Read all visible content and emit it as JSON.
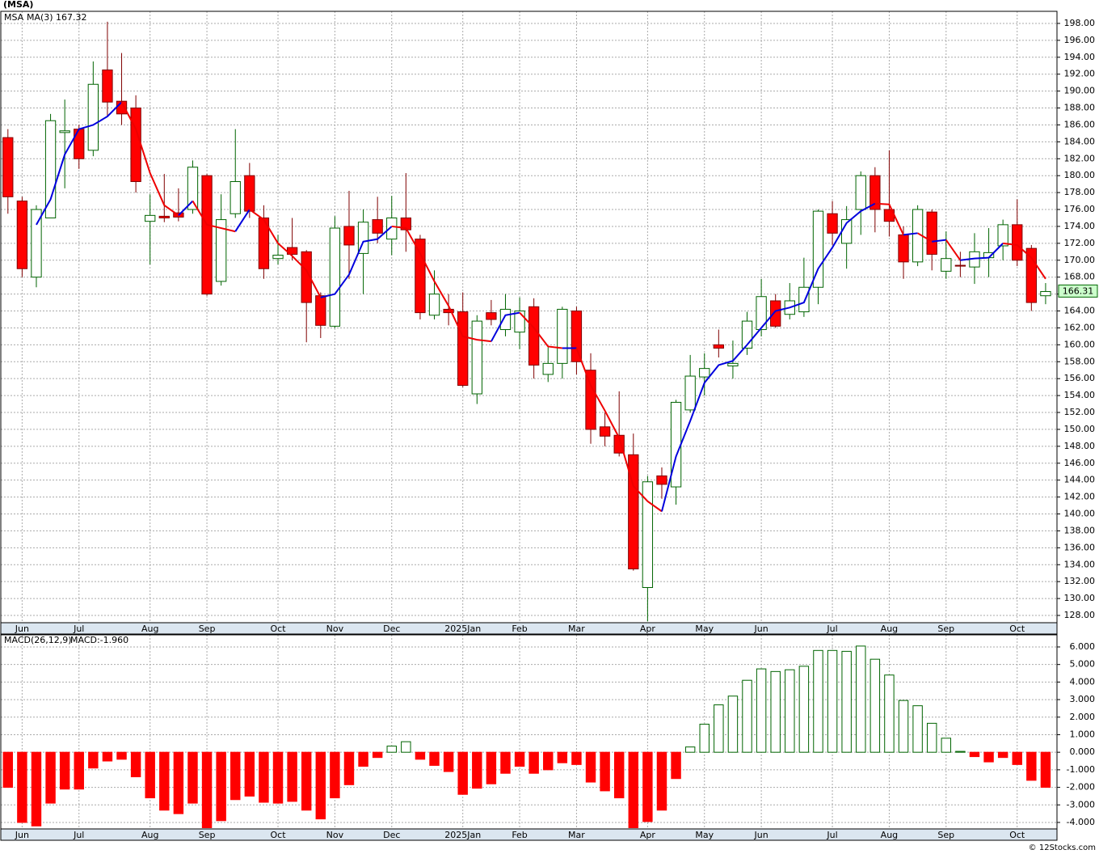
{
  "chart_data": [
    {
      "type": "candlestick",
      "title": "(MSA)",
      "symbol": "MSA",
      "up_color": "#006400",
      "down_color": "#ff0000",
      "open": [
        184.5,
        177,
        168,
        175,
        185.1,
        185.5,
        183,
        192.5,
        188.8,
        188,
        174.6,
        175.2,
        175.6,
        176,
        180,
        167.5,
        175.5,
        180,
        175,
        170.2,
        171.5,
        171,
        165.8,
        162.2,
        174,
        170.8,
        174.8,
        172.5,
        175,
        172.5,
        163.5,
        164.2,
        163.9,
        154.2,
        163.8,
        161.8,
        161.5,
        164.5,
        156.5,
        157.8,
        164,
        157,
        150.3,
        149.3,
        147,
        131.3,
        144.5,
        143.2,
        152.3,
        156.2,
        160,
        157.5,
        159.6,
        161.8,
        165.2,
        163.6,
        163.9,
        166.8,
        175.5,
        172,
        176,
        180,
        176,
        173,
        169.8,
        175.7,
        168.7,
        169.4,
        169.2,
        170.3,
        171.7,
        174.2,
        171.4,
        165.8
      ],
      "high": [
        185.5,
        177.5,
        176.5,
        187.3,
        189,
        186,
        193.5,
        198.2,
        194.5,
        189.5,
        177.8,
        180.2,
        178.5,
        181.8,
        180.2,
        177.8,
        185.5,
        181.5,
        176.5,
        173,
        175,
        171.2,
        166.2,
        175.2,
        178.2,
        176,
        177.5,
        177.6,
        180.3,
        173,
        168.8,
        166,
        166.2,
        163.5,
        165.3,
        166,
        165.6,
        165.5,
        159.7,
        164.5,
        164.5,
        159,
        152,
        154.5,
        149.5,
        144.5,
        145.5,
        153.5,
        158.8,
        159,
        161.8,
        160.5,
        163.9,
        167.8,
        166,
        167.3,
        170.3,
        176,
        177,
        176.4,
        180.5,
        181,
        183,
        174,
        176.5,
        176,
        173.4,
        171,
        173.2,
        173.8,
        174.8,
        177.2,
        171.8,
        167.3
      ],
      "low": [
        175.5,
        168,
        166.8,
        175,
        178.5,
        180.8,
        182.3,
        187,
        186,
        178,
        169.5,
        174.5,
        174.6,
        175.5,
        165.8,
        167,
        175,
        175,
        167.8,
        169.5,
        170,
        160.3,
        160.8,
        162,
        167.8,
        166,
        172,
        170.6,
        171,
        163,
        163,
        162.3,
        155,
        153,
        162.3,
        161,
        159.5,
        156,
        155.6,
        156,
        156.5,
        148.3,
        148,
        146.8,
        133.3,
        127.3,
        141.8,
        141.1,
        152,
        154,
        158.5,
        156,
        158.8,
        161,
        162,
        163,
        163.3,
        164.8,
        171.8,
        169,
        173,
        173.3,
        172.8,
        167.8,
        169.3,
        168.8,
        167.8,
        168,
        167.2,
        168,
        170,
        169.3,
        164,
        164.8
      ],
      "close": [
        177.5,
        169,
        176,
        186.5,
        185.3,
        182,
        190.8,
        188.7,
        187.3,
        179.3,
        175.3,
        175,
        175.1,
        181,
        166,
        174.8,
        179.3,
        175.8,
        169,
        170.6,
        170.7,
        165,
        162.3,
        173.8,
        171.8,
        174.5,
        173.2,
        175,
        173.6,
        163.8,
        166,
        163.8,
        155.2,
        162.8,
        163,
        164.2,
        164,
        157.6,
        157.8,
        164.2,
        158,
        150,
        149.2,
        147.2,
        133.5,
        143.8,
        143.5,
        153.2,
        156.3,
        157.2,
        159.6,
        157.8,
        162.8,
        165.7,
        162.2,
        165.2,
        166.8,
        175.8,
        173.2,
        174.8,
        180,
        176,
        174.6,
        169.8,
        176,
        170.7,
        170.2,
        169.3,
        171,
        170.9,
        174.2,
        170,
        165,
        166.3
      ],
      "series": [
        {
          "name": "MA(3)",
          "legend_value": 167.32,
          "up_color": "#0000dd",
          "down_color": "#ee0000",
          "values": [
            null,
            null,
            174.2,
            177.2,
            182.5,
            185.5,
            186,
            187,
            188.7,
            185.5,
            180.3,
            176.5,
            175.3,
            177,
            174.2,
            173.8,
            173.4,
            176,
            174.8,
            172,
            170.5,
            168.8,
            165.6,
            166,
            168.3,
            172.2,
            172.5,
            174,
            173.8,
            170.8,
            167.5,
            164.6,
            161,
            160.6,
            160.4,
            163.5,
            163.8,
            162,
            159.8,
            159.6,
            159.6,
            155.2,
            152.2,
            149,
            143.3,
            141.5,
            140.3,
            146.8,
            151,
            155.5,
            157.6,
            158.1,
            160,
            162,
            164,
            164.4,
            165,
            169,
            171.5,
            174.4,
            175.8,
            176.7,
            176.6,
            173,
            173.2,
            172.2,
            172.4,
            170,
            170.2,
            170.3,
            172,
            171.8,
            170.3,
            167.8
          ]
        }
      ],
      "last_price": 166.31,
      "xlim": [
        -0.5,
        73.8
      ],
      "ylim": [
        127.14,
        199.43
      ],
      "xticks": [
        {
          "value": 1,
          "label": "Jun"
        },
        {
          "value": 5,
          "label": "Jul"
        },
        {
          "value": 10,
          "label": "Aug"
        },
        {
          "value": 14,
          "label": "Sep"
        },
        {
          "value": 19,
          "label": "Oct"
        },
        {
          "value": 23,
          "label": "Nov"
        },
        {
          "value": 27,
          "label": "Dec"
        },
        {
          "value": 32,
          "label": "2025Jan"
        },
        {
          "value": 36,
          "label": "Feb"
        },
        {
          "value": 40,
          "label": "Mar"
        },
        {
          "value": 45,
          "label": "Apr"
        },
        {
          "value": 49,
          "label": "May"
        },
        {
          "value": 53,
          "label": "Jun"
        },
        {
          "value": 58,
          "label": "Jul"
        },
        {
          "value": 62,
          "label": "Aug"
        },
        {
          "value": 66,
          "label": "Sep"
        },
        {
          "value": 71,
          "label": "Oct"
        }
      ],
      "yticks": [
        {
          "value": 128,
          "label": "128.00"
        },
        {
          "value": 130,
          "label": "130.00"
        },
        {
          "value": 132,
          "label": "132.00"
        },
        {
          "value": 134,
          "label": "134.00"
        },
        {
          "value": 136,
          "label": "136.00"
        },
        {
          "value": 138,
          "label": "138.00"
        },
        {
          "value": 140,
          "label": "140.00"
        },
        {
          "value": 142,
          "label": "142.00"
        },
        {
          "value": 144,
          "label": "144.00"
        },
        {
          "value": 146,
          "label": "146.00"
        },
        {
          "value": 148,
          "label": "148.00"
        },
        {
          "value": 150,
          "label": "150.00"
        },
        {
          "value": 152,
          "label": "152.00"
        },
        {
          "value": 154,
          "label": "154.00"
        },
        {
          "value": 156,
          "label": "156.00"
        },
        {
          "value": 158,
          "label": "158.00"
        },
        {
          "value": 160,
          "label": "160.00"
        },
        {
          "value": 162,
          "label": "162.00"
        },
        {
          "value": 164,
          "label": "164.00"
        },
        {
          "value": 166,
          "label": "166.00"
        },
        {
          "value": 168,
          "label": "168.00"
        },
        {
          "value": 170,
          "label": "170.00"
        },
        {
          "value": 172,
          "label": "172.00"
        },
        {
          "value": 174,
          "label": "174.00"
        },
        {
          "value": 176,
          "label": "176.00"
        },
        {
          "value": 178,
          "label": "178.00"
        },
        {
          "value": 180,
          "label": "180.00"
        },
        {
          "value": 182,
          "label": "182.00"
        },
        {
          "value": 184,
          "label": "184.00"
        },
        {
          "value": 186,
          "label": "186.00"
        },
        {
          "value": 188,
          "label": "188.00"
        },
        {
          "value": 190,
          "label": "190.00"
        },
        {
          "value": 192,
          "label": "192.00"
        },
        {
          "value": 194,
          "label": "194.00"
        },
        {
          "value": 196,
          "label": "196.00"
        },
        {
          "value": 198,
          "label": "198.00"
        }
      ],
      "grid": true
    },
    {
      "type": "bar",
      "title": "MACD(26,12,9)",
      "legend": "MACD:-1.960",
      "up_color": "#006400",
      "down_color": "#ff0000",
      "values": [
        -2.0,
        -4.0,
        -4.2,
        -2.9,
        -2.1,
        -2.1,
        -0.9,
        -0.5,
        -0.4,
        -1.4,
        -2.6,
        -3.3,
        -3.5,
        -2.9,
        -4.3,
        -3.9,
        -2.7,
        -2.5,
        -2.85,
        -2.9,
        -2.8,
        -3.3,
        -3.8,
        -2.6,
        -1.85,
        -0.8,
        -0.3,
        0.35,
        0.6,
        -0.4,
        -0.75,
        -1.1,
        -2.4,
        -2.05,
        -1.8,
        -1.2,
        -0.8,
        -1.2,
        -1.0,
        -0.6,
        -0.7,
        -1.7,
        -2.2,
        -2.6,
        -4.3,
        -3.95,
        -3.3,
        -1.5,
        0.3,
        1.6,
        2.7,
        3.2,
        4.1,
        4.75,
        4.6,
        4.7,
        4.9,
        5.8,
        5.8,
        5.75,
        6.05,
        5.3,
        4.4,
        2.95,
        2.65,
        1.65,
        0.8,
        0.05,
        -0.25,
        -0.55,
        -0.3,
        -0.7,
        -1.6,
        -2.0
      ],
      "xlim": [
        -0.5,
        73.8
      ],
      "ylim": [
        -4.37,
        6.69
      ],
      "xticks": [
        {
          "value": 1,
          "label": "Jun"
        },
        {
          "value": 5,
          "label": "Jul"
        },
        {
          "value": 10,
          "label": "Aug"
        },
        {
          "value": 14,
          "label": "Sep"
        },
        {
          "value": 19,
          "label": "Oct"
        },
        {
          "value": 23,
          "label": "Nov"
        },
        {
          "value": 27,
          "label": "Dec"
        },
        {
          "value": 32,
          "label": "2025Jan"
        },
        {
          "value": 36,
          "label": "Feb"
        },
        {
          "value": 40,
          "label": "Mar"
        },
        {
          "value": 45,
          "label": "Apr"
        },
        {
          "value": 49,
          "label": "May"
        },
        {
          "value": 53,
          "label": "Jun"
        },
        {
          "value": 58,
          "label": "Jul"
        },
        {
          "value": 62,
          "label": "Aug"
        },
        {
          "value": 66,
          "label": "Sep"
        },
        {
          "value": 71,
          "label": "Oct"
        }
      ],
      "yticks": [
        {
          "value": -4,
          "label": "-4.000"
        },
        {
          "value": -3,
          "label": "-3.000"
        },
        {
          "value": -2,
          "label": "-2.000"
        },
        {
          "value": -1,
          "label": "-1.000"
        },
        {
          "value": 0,
          "label": "0.000"
        },
        {
          "value": 1,
          "label": "1.000"
        },
        {
          "value": 2,
          "label": "2.000"
        },
        {
          "value": 3,
          "label": "3.000"
        },
        {
          "value": 4,
          "label": "4.000"
        },
        {
          "value": 5,
          "label": "5.000"
        },
        {
          "value": 6,
          "label": "6.000"
        }
      ],
      "grid": true
    }
  ],
  "footer": "© 12Stocks.com"
}
